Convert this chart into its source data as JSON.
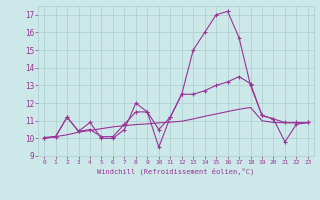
{
  "xlabel": "Windchill (Refroidissement éolien,°C)",
  "xlim": [
    -0.5,
    23.5
  ],
  "ylim": [
    9,
    17.5
  ],
  "xticks": [
    0,
    1,
    2,
    3,
    4,
    5,
    6,
    7,
    8,
    9,
    10,
    11,
    12,
    13,
    14,
    15,
    16,
    17,
    18,
    19,
    20,
    21,
    22,
    23
  ],
  "yticks": [
    9,
    10,
    11,
    12,
    13,
    14,
    15,
    16,
    17
  ],
  "bg_color": "#cce8e8",
  "grid_color": "#aacece",
  "line_color": "#993399",
  "line1_x": [
    0,
    1,
    2,
    3,
    4,
    5,
    6,
    7,
    8,
    9,
    10,
    11,
    12,
    13,
    14,
    15,
    16,
    17,
    18,
    19,
    20,
    21,
    22,
    23
  ],
  "line1_y": [
    10.0,
    10.1,
    11.2,
    10.4,
    10.9,
    10.0,
    10.0,
    10.5,
    12.0,
    11.5,
    9.5,
    11.2,
    12.5,
    15.0,
    16.0,
    17.0,
    17.2,
    15.7,
    13.0,
    11.3,
    11.1,
    9.8,
    10.8,
    10.9
  ],
  "line2_x": [
    0,
    1,
    2,
    3,
    4,
    5,
    6,
    7,
    8,
    9,
    10,
    11,
    12,
    13,
    14,
    15,
    16,
    17,
    18,
    19,
    20,
    21,
    22,
    23
  ],
  "line2_y": [
    10.0,
    10.1,
    11.2,
    10.4,
    10.5,
    10.1,
    10.1,
    10.8,
    11.5,
    11.5,
    10.5,
    11.2,
    12.5,
    12.5,
    12.7,
    13.0,
    13.2,
    13.5,
    13.1,
    11.3,
    11.1,
    10.9,
    10.9,
    10.9
  ],
  "line3_x": [
    0,
    1,
    2,
    3,
    4,
    5,
    6,
    7,
    8,
    9,
    10,
    11,
    12,
    13,
    14,
    15,
    16,
    17,
    18,
    19,
    20,
    21,
    22,
    23
  ],
  "line3_y": [
    10.05,
    10.1,
    10.2,
    10.35,
    10.45,
    10.55,
    10.65,
    10.72,
    10.78,
    10.82,
    10.88,
    10.92,
    10.97,
    11.1,
    11.25,
    11.38,
    11.52,
    11.65,
    11.75,
    11.0,
    10.9,
    10.88,
    10.88,
    10.88
  ]
}
